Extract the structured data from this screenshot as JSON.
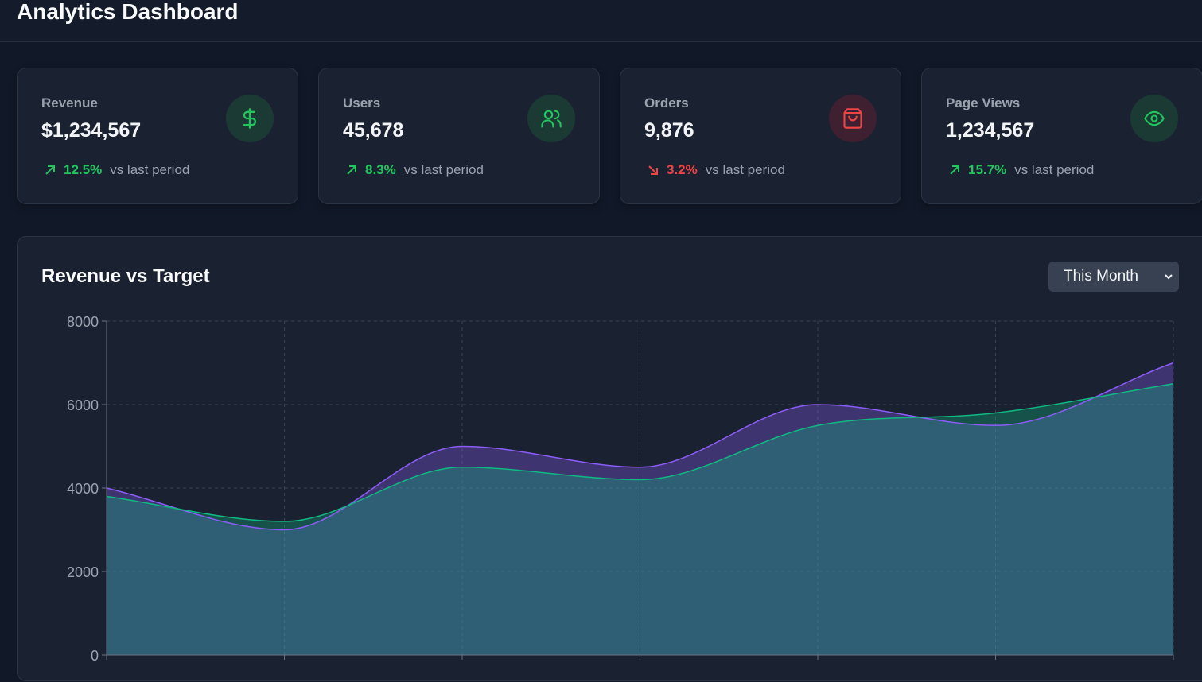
{
  "header": {
    "title": "Analytics Dashboard"
  },
  "stats": [
    {
      "label": "Revenue",
      "value": "$1,234,567",
      "change": "12.5%",
      "direction": "up",
      "suffix": "vs last period",
      "icon": "dollar-icon"
    },
    {
      "label": "Users",
      "value": "45,678",
      "change": "8.3%",
      "direction": "up",
      "suffix": "vs last period",
      "icon": "users-icon"
    },
    {
      "label": "Orders",
      "value": "9,876",
      "change": "3.2%",
      "direction": "down",
      "suffix": "vs last period",
      "icon": "shopping-bag-icon"
    },
    {
      "label": "Page Views",
      "value": "1,234,567",
      "change": "15.7%",
      "direction": "up",
      "suffix": "vs last period",
      "icon": "eye-icon"
    }
  ],
  "chart_panel": {
    "title": "Revenue vs Target",
    "period_select": {
      "selected": "This Month"
    }
  },
  "colors": {
    "up": "#22c55e",
    "down": "#ef4444",
    "revenue_series": "#8b5cf6",
    "target_series": "#10b981"
  },
  "chart_data": {
    "type": "area",
    "title": "Revenue vs Target",
    "x": [
      0,
      1,
      2,
      3,
      4,
      5,
      6
    ],
    "yticks": [
      0,
      2000,
      4000,
      6000,
      8000
    ],
    "ylim": [
      0,
      8000
    ],
    "grid": true,
    "series": [
      {
        "values": [
          4000,
          3000,
          5000,
          4500,
          6000,
          5500,
          7000
        ],
        "color": "#8b5cf6"
      },
      {
        "values": [
          3800,
          3200,
          4500,
          4200,
          5500,
          5800,
          6500
        ],
        "color": "#10b981"
      }
    ]
  }
}
